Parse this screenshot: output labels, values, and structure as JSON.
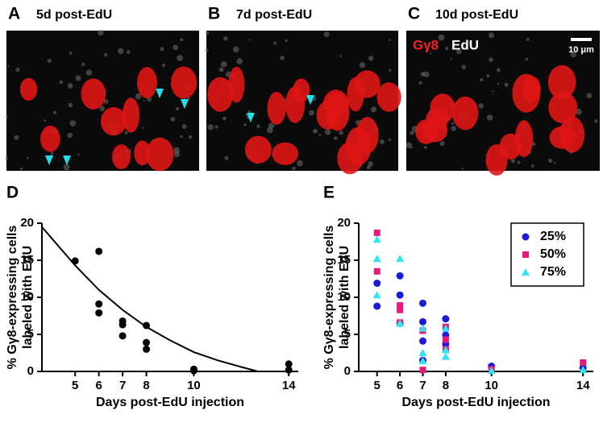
{
  "figure": {
    "panels": [
      {
        "label": "A",
        "caption": "5d post-EdU"
      },
      {
        "label": "B",
        "caption": "7d post-EdU"
      },
      {
        "label": "C",
        "caption": "10d post-EdU"
      }
    ],
    "stain_red": "Gγ8",
    "stain_white": "EdU",
    "scale_bar": "10 μm"
  },
  "chart_data": [
    {
      "type": "scatter",
      "panel_label": "D",
      "xlabel": "Days post-EdU injection",
      "ylabel": [
        "% Gγ8-expressing cells",
        "labeled with EdU"
      ],
      "xlim": [
        3.6,
        14.4
      ],
      "ylim": [
        0,
        20
      ],
      "xticks": [
        5,
        6,
        7,
        8,
        10,
        14
      ],
      "yticks": [
        0,
        5,
        10,
        15,
        20
      ],
      "series": [
        {
          "color": "#000000",
          "marker": "circle",
          "x": [
            5,
            6,
            6,
            6,
            7,
            7,
            7,
            8,
            8,
            8,
            10,
            10,
            14,
            14
          ],
          "values": [
            14.9,
            16.2,
            9.1,
            7.9,
            6.8,
            6.3,
            4.8,
            6.2,
            3.9,
            3.0,
            0.3,
            0.1,
            1.0,
            0.2
          ]
        }
      ],
      "fit": {
        "color": "#000000",
        "x": [
          3.6,
          4,
          5,
          6,
          7,
          8,
          9,
          10,
          11,
          12,
          12.7,
          14
        ],
        "y": [
          19.5,
          18,
          14.3,
          11,
          8.3,
          6,
          4.2,
          2.6,
          1.5,
          0.6,
          0,
          0
        ]
      }
    },
    {
      "type": "scatter",
      "panel_label": "E",
      "xlabel": "Days post-EdU injection",
      "ylabel": [
        "% Gγ8-expressing cells",
        "labeled with EdU"
      ],
      "xlim": [
        4.2,
        14.45
      ],
      "ylim": [
        0,
        20
      ],
      "xticks": [
        5,
        6,
        7,
        8,
        10,
        14
      ],
      "yticks": [
        0,
        5,
        10,
        15,
        20
      ],
      "legend": "upper right",
      "series": [
        {
          "name": "25%",
          "color": "#1a1adb",
          "marker": "circle",
          "x": [
            5,
            5,
            6,
            6,
            6,
            7,
            7,
            7,
            7,
            8,
            8,
            8,
            10,
            14
          ],
          "values": [
            11.9,
            8.8,
            12.9,
            10.3,
            6.5,
            9.2,
            6.7,
            4.1,
            1.5,
            7.1,
            4.9,
            3.7,
            0.7,
            0.5
          ]
        },
        {
          "name": "50%",
          "color": "#e8197a",
          "marker": "square",
          "x": [
            5,
            5,
            6,
            6,
            6,
            7,
            7,
            8,
            8,
            8,
            10,
            14
          ],
          "values": [
            18.7,
            13.5,
            8.9,
            8.3,
            6.6,
            5.5,
            0.2,
            6.0,
            4.3,
            3.0,
            0.3,
            1.2
          ]
        },
        {
          "name": "75%",
          "color": "#2ee6f0",
          "marker": "triangle",
          "x": [
            5,
            5,
            5,
            6,
            6,
            7,
            7,
            7,
            8,
            8,
            8,
            10,
            14
          ],
          "values": [
            17.8,
            15.2,
            10.3,
            15.2,
            6.5,
            5.8,
            2.5,
            1.4,
            5.8,
            2.9,
            2.0,
            0.1,
            0.2
          ]
        }
      ]
    }
  ]
}
